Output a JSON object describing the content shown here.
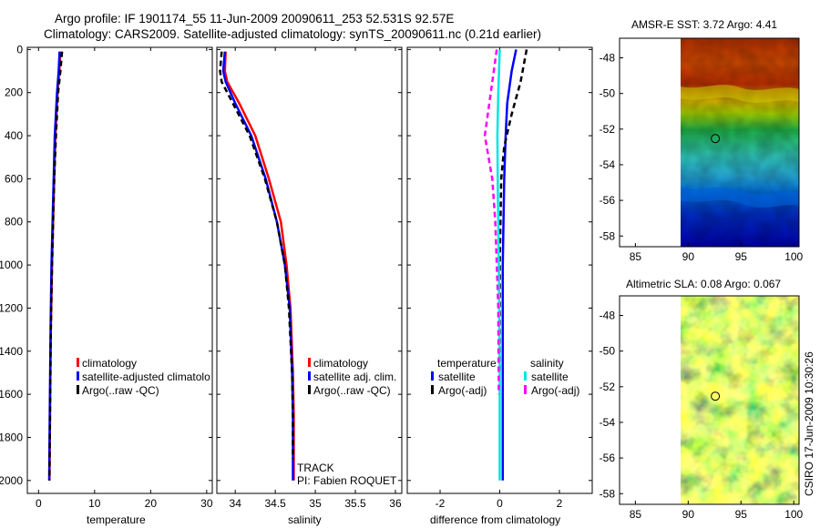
{
  "header": {
    "title_line1": "Argo profile: IF 1901174_55 11-Jun-2009 20090611_253 52.531S 92.57E",
    "title_line2": "Climatology: CARS2009. Satellite-adjusted climatology: synTS_20090611.nc (0.21d earlier)"
  },
  "side_caption": "CSIRO 17-Jun-2009 10:30:26",
  "chart_data": [
    {
      "type": "line",
      "id": "temperature",
      "xlabel": "temperature",
      "ylabel": "",
      "xlim": [
        -2,
        31
      ],
      "ylim": [
        2060,
        -10
      ],
      "xticks": [
        0,
        10,
        20,
        30
      ],
      "xtick_labels": [
        "0",
        "10",
        "20",
        "30"
      ],
      "yticks": [
        0,
        200,
        400,
        600,
        800,
        1000,
        1200,
        1400,
        1600,
        1800,
        2000
      ],
      "ytick_labels": [
        "0",
        "200",
        "400",
        "600",
        "800",
        "1000",
        "1200",
        "1400",
        "1600",
        "1800",
        "2000"
      ],
      "legend": [
        {
          "label": "climatology",
          "color": "#ff0000"
        },
        {
          "label": "satellite-adjusted climatolo",
          "color": "#0000ff"
        },
        {
          "label": "Argo(..raw -QC)",
          "color": "#000000"
        }
      ],
      "series": [
        {
          "name": "climatology",
          "color": "#ff0000",
          "style": "solid",
          "x": [
            3.9,
            3.7,
            3.4,
            3.0,
            2.8,
            2.6,
            2.4,
            2.2,
            2.05,
            1.95
          ],
          "y": [
            10,
            100,
            200,
            400,
            600,
            800,
            1000,
            1300,
            1700,
            2000
          ]
        },
        {
          "name": "satellite-adjusted",
          "color": "#0000ff",
          "style": "solid",
          "x": [
            3.75,
            3.6,
            3.3,
            2.9,
            2.7,
            2.5,
            2.3,
            2.15,
            2.0,
            1.9
          ],
          "y": [
            10,
            100,
            200,
            400,
            600,
            800,
            1000,
            1300,
            1700,
            2000
          ]
        },
        {
          "name": "Argo",
          "color": "#000000",
          "style": "dashed",
          "x": [
            4.2,
            3.9,
            3.5,
            3.1,
            2.8,
            2.6,
            2.4,
            2.2,
            2.05,
            1.95
          ],
          "y": [
            10,
            100,
            200,
            400,
            600,
            800,
            1000,
            1300,
            1700,
            2000
          ]
        }
      ]
    },
    {
      "type": "line",
      "id": "salinity",
      "xlabel": "salinity",
      "xlim": [
        33.77,
        36.08
      ],
      "ylim": [
        2060,
        -10
      ],
      "xticks": [
        34,
        34.5,
        35,
        35.5,
        36
      ],
      "xtick_labels": [
        "34",
        "34.5",
        "35",
        "35.5",
        "36"
      ],
      "legend": [
        {
          "label": "climatology",
          "color": "#ff0000"
        },
        {
          "label": "satellite adj. clim.",
          "color": "#0000ff"
        },
        {
          "label": "Argo(..raw -QC)",
          "color": "#000000"
        }
      ],
      "annotation": {
        "track": "TRACK",
        "pi": "PI: Fabien ROQUET"
      },
      "series": [
        {
          "name": "climatology",
          "color": "#ff0000",
          "style": "solid",
          "x": [
            33.88,
            33.87,
            33.9,
            34.05,
            34.25,
            34.42,
            34.57,
            34.64,
            34.69,
            34.72,
            34.73,
            34.73,
            34.73
          ],
          "y": [
            10,
            100,
            150,
            250,
            400,
            600,
            800,
            1000,
            1200,
            1500,
            1700,
            1900,
            2000
          ]
        },
        {
          "name": "satellite-adjusted",
          "color": "#0000ff",
          "style": "solid",
          "x": [
            33.87,
            33.85,
            33.88,
            34.0,
            34.2,
            34.38,
            34.52,
            34.62,
            34.68,
            34.71,
            34.72,
            34.72,
            34.72
          ],
          "y": [
            10,
            100,
            150,
            250,
            400,
            600,
            800,
            1000,
            1200,
            1500,
            1700,
            1900,
            2000
          ]
        },
        {
          "name": "Argo",
          "color": "#000000",
          "style": "dashed",
          "x": [
            33.83,
            33.81,
            33.83,
            33.97,
            34.18,
            34.37,
            34.52,
            34.62,
            34.67,
            34.71,
            34.72,
            34.72
          ],
          "y": [
            10,
            100,
            150,
            250,
            400,
            600,
            800,
            1000,
            1200,
            1500,
            1700,
            1900
          ]
        }
      ]
    },
    {
      "type": "line",
      "id": "difference",
      "xlabel": "difference from climatology",
      "xlim": [
        -3.1,
        3.1
      ],
      "ylim": [
        2060,
        -10
      ],
      "xticks": [
        -2,
        0,
        2
      ],
      "xtick_labels": [
        "-2",
        "0",
        "2"
      ],
      "legend_left_title": "temperature",
      "legend_right_title": "salinity",
      "legend": [
        {
          "label": "satellite",
          "color": "#0000ff",
          "group": "temperature"
        },
        {
          "label": "Argo(-adj)",
          "color": "#000000",
          "group": "temperature"
        },
        {
          "label": "satellite",
          "color": "#00e5e5",
          "group": "salinity"
        },
        {
          "label": "Argo(-adj)",
          "color": "#ff00ff",
          "group": "salinity"
        }
      ],
      "series": [
        {
          "name": "temperature satellite",
          "color": "#0000ff",
          "style": "solid",
          "x": [
            0.55,
            0.4,
            0.25,
            0.2,
            0.15,
            0.1,
            0.1,
            0.1
          ],
          "y": [
            0,
            100,
            250,
            400,
            600,
            1000,
            1500,
            2000
          ]
        },
        {
          "name": "temperature Argo(-adj)",
          "color": "#000000",
          "style": "dashed",
          "x": [
            0.9,
            0.7,
            0.4,
            0.15,
            0.05,
            0.0,
            0.0
          ],
          "y": [
            0,
            150,
            300,
            450,
            600,
            1000,
            1500
          ]
        },
        {
          "name": "salinity satellite",
          "color": "#00e5e5",
          "style": "solid",
          "x": [
            0.0,
            -0.05,
            -0.08,
            -0.06,
            -0.03,
            0.0,
            0.0
          ],
          "y": [
            0,
            200,
            400,
            700,
            1000,
            1500,
            2000
          ]
        },
        {
          "name": "salinity Argo(-adj)",
          "color": "#ff00ff",
          "style": "dashed",
          "x": [
            -0.1,
            -0.3,
            -0.5,
            -0.25,
            -0.15,
            -0.05,
            -0.03
          ],
          "y": [
            0,
            200,
            400,
            600,
            800,
            1200,
            1600
          ]
        }
      ]
    },
    {
      "type": "heatmap",
      "id": "sst_map",
      "title": "AMSR-E SST: 3.72 Argo: 4.41",
      "xlim": [
        83.5,
        100.5
      ],
      "ylim": [
        -58.6,
        -46.9
      ],
      "xticks": [
        85,
        90,
        95,
        100
      ],
      "xtick_labels": [
        "85",
        "90",
        "95",
        "100"
      ],
      "yticks": [
        -48,
        -50,
        -52,
        -54,
        -56,
        -58
      ],
      "ytick_labels": [
        "-48",
        "-50",
        "-52",
        "-54",
        "-56",
        "-58"
      ],
      "data_lon_range": [
        90,
        100.5
      ],
      "colors": {
        "warm": "#c83a00",
        "mid": "#c8d800",
        "green": "#22b84a",
        "cyan": "#30c8c8",
        "cold": "#0000c0"
      },
      "marker": {
        "lon": 92.57,
        "lat": -52.53
      }
    },
    {
      "type": "heatmap",
      "id": "sla_map",
      "title": "Altimetric SLA: 0.08 Argo: 0.067",
      "xlim": [
        83.5,
        100.5
      ],
      "ylim": [
        -58.6,
        -46.9
      ],
      "xticks": [
        85,
        90,
        95,
        100
      ],
      "xtick_labels": [
        "85",
        "90",
        "95",
        "100"
      ],
      "yticks": [
        -48,
        -50,
        -52,
        -54,
        -56,
        -58
      ],
      "ytick_labels": [
        "-48",
        "-50",
        "-52",
        "-54",
        "-56",
        "-58"
      ],
      "data_lon_range": [
        90,
        100.5
      ],
      "colors": {
        "yellow": "#e8e800",
        "orange": "#f0a000",
        "green": "#3cc03c",
        "teal": "#40b8a0"
      },
      "marker": {
        "lon": 92.57,
        "lat": -52.53
      }
    }
  ]
}
